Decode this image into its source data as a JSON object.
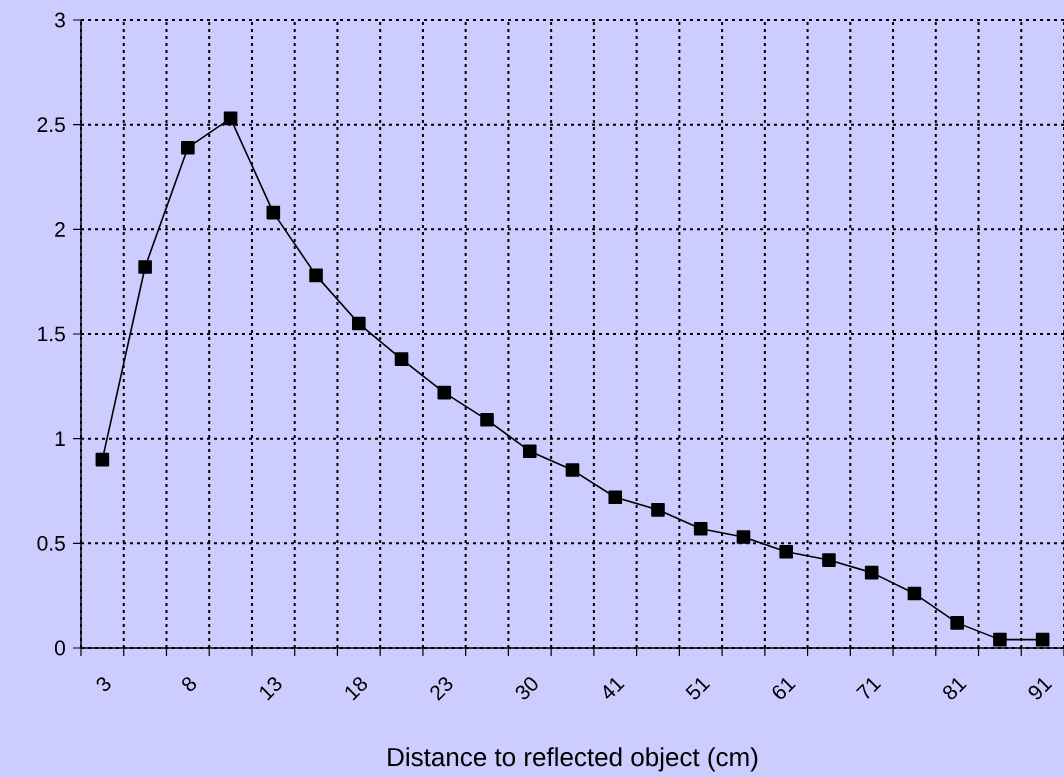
{
  "chart_data": {
    "type": "line",
    "xlabel": "Distance to reflected object (cm)",
    "categories": [
      "3",
      null,
      "8",
      null,
      "13",
      null,
      "18",
      null,
      "23",
      null,
      "30",
      null,
      "41",
      null,
      "51",
      null,
      "61",
      null,
      "71",
      null,
      "81",
      null,
      "91"
    ],
    "series": [
      {
        "color": "#000000",
        "values": [
          0.9,
          1.82,
          2.39,
          2.53,
          2.08,
          1.78,
          1.55,
          1.38,
          1.22,
          1.09,
          0.94,
          0.85,
          0.72,
          0.66,
          0.57,
          0.53,
          0.46,
          0.42,
          0.36,
          0.26,
          0.12,
          0.04,
          0.04
        ]
      }
    ],
    "ylim": [
      0,
      3
    ],
    "yticks": [
      0,
      0.5,
      1,
      1.5,
      2,
      2.5,
      3
    ],
    "grid": true,
    "marker": "square",
    "line_style": "solid"
  }
}
